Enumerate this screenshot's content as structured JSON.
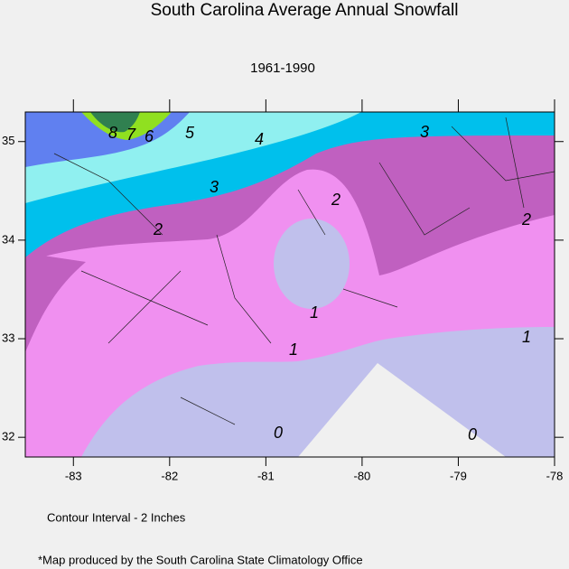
{
  "title": "South Carolina Average Annual Snowfall",
  "subtitle": "1961-1990",
  "map": {
    "xlim": [
      -83.5,
      -78
    ],
    "ylim": [
      31.8,
      35.3
    ],
    "xticks": [
      -83,
      -82,
      -81,
      -80,
      -79,
      -78
    ],
    "yticks": [
      32,
      33,
      34,
      35
    ],
    "contour_labels": [
      8,
      7,
      6,
      5,
      4,
      3,
      3,
      2,
      2,
      2,
      1,
      1,
      1,
      0,
      0
    ]
  },
  "notes": [
    "Contour Interval - 2 Inches",
    "*Map produced by the South Carolina State Climatology Office"
  ]
}
